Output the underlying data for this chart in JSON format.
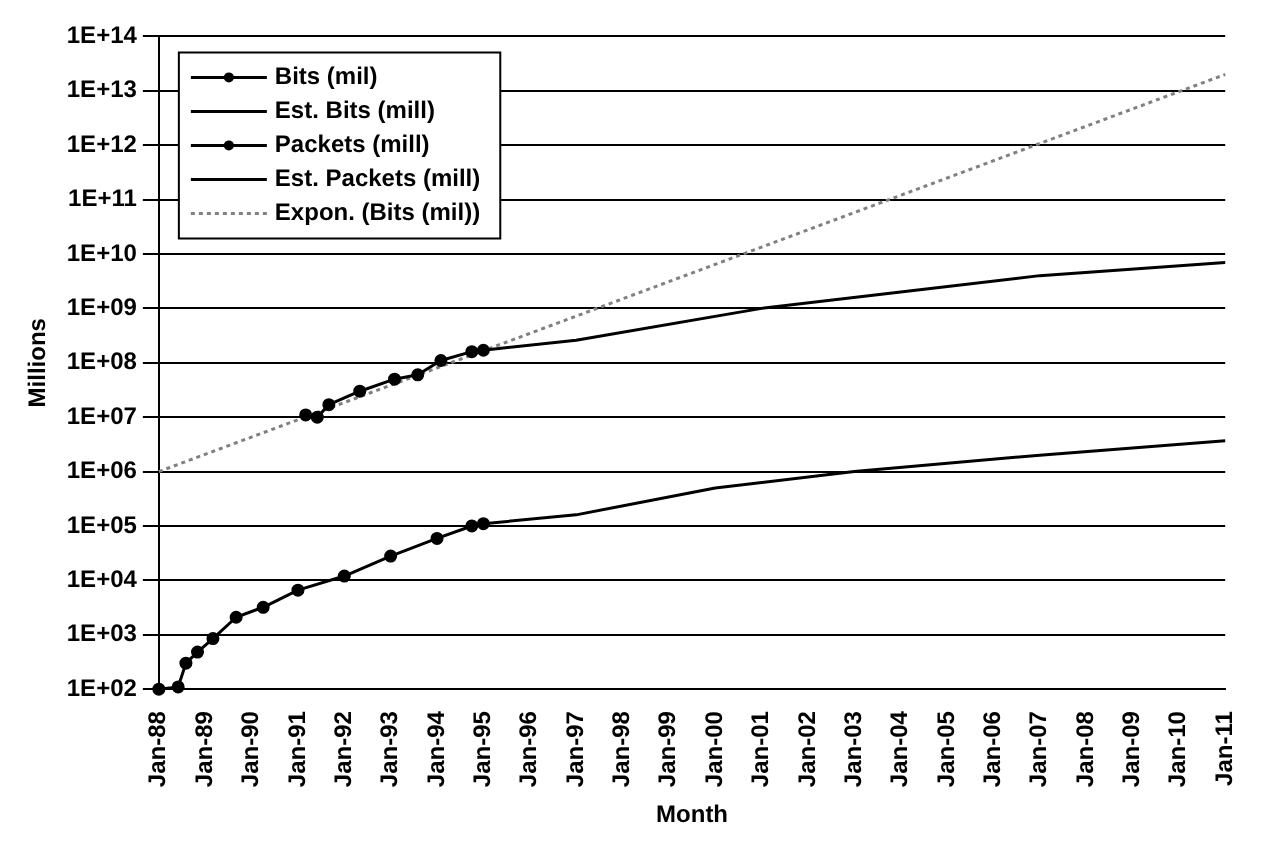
{
  "chart_data": {
    "type": "line",
    "xlabel": "Month",
    "ylabel": "Millions",
    "log": "y",
    "grid": "y",
    "legend": "top left",
    "xlim": [
      "1988-01",
      "2011-01"
    ],
    "xticks": [
      {
        "value": "1988-01",
        "label": "Jan-88"
      },
      {
        "value": "1989-01",
        "label": "Jan-89"
      },
      {
        "value": "1990-01",
        "label": "Jan-90"
      },
      {
        "value": "1991-01",
        "label": "Jan-91"
      },
      {
        "value": "1992-01",
        "label": "Jan-92"
      },
      {
        "value": "1993-01",
        "label": "Jan-93"
      },
      {
        "value": "1994-01",
        "label": "Jan-94"
      },
      {
        "value": "1995-01",
        "label": "Jan-95"
      },
      {
        "value": "1996-01",
        "label": "Jan-96"
      },
      {
        "value": "1997-01",
        "label": "Jan-97"
      },
      {
        "value": "1998-01",
        "label": "Jan-98"
      },
      {
        "value": "1999-01",
        "label": "Jan-99"
      },
      {
        "value": "2000-01",
        "label": "Jan-00"
      },
      {
        "value": "2001-01",
        "label": "Jan-01"
      },
      {
        "value": "2002-01",
        "label": "Jan-02"
      },
      {
        "value": "2003-01",
        "label": "Jan-03"
      },
      {
        "value": "2004-01",
        "label": "Jan-04"
      },
      {
        "value": "2005-01",
        "label": "Jan-05"
      },
      {
        "value": "2006-01",
        "label": "Jan-06"
      },
      {
        "value": "2007-01",
        "label": "Jan-07"
      },
      {
        "value": "2008-01",
        "label": "Jan-08"
      },
      {
        "value": "2009-01",
        "label": "Jan-09"
      },
      {
        "value": "2010-01",
        "label": "Jan-10"
      },
      {
        "value": "2011-01",
        "label": "Jan-11"
      }
    ],
    "ylim": [
      100,
      100000000000000
    ],
    "yticks": [
      {
        "value": 100,
        "label": "1E+02"
      },
      {
        "value": 1000,
        "label": "1E+03"
      },
      {
        "value": 10000,
        "label": "1E+04"
      },
      {
        "value": 100000,
        "label": "1E+05"
      },
      {
        "value": 1000000,
        "label": "1E+06"
      },
      {
        "value": 10000000,
        "label": "1E+07"
      },
      {
        "value": 100000000,
        "label": "1E+08"
      },
      {
        "value": 1000000000,
        "label": "1E+09"
      },
      {
        "value": 10000000000,
        "label": "1E+10"
      },
      {
        "value": 100000000000,
        "label": "1E+11"
      },
      {
        "value": 1000000000000,
        "label": "1E+12"
      },
      {
        "value": 10000000000000,
        "label": "1E+13"
      },
      {
        "value": 100000000000000,
        "label": "1E+14"
      }
    ],
    "series": [
      {
        "name": "Bits (mil)",
        "color": "#000000",
        "marker": "circle",
        "line_style": "solid",
        "x": [
          "1991-03",
          "1991-06",
          "1991-09",
          "1992-05",
          "1993-02",
          "1993-08",
          "1994-02",
          "1994-10",
          "1995-01"
        ],
        "values": [
          11000000,
          10000000,
          17000000,
          30000000,
          50000000,
          60000000,
          110000000,
          160000000,
          170000000
        ]
      },
      {
        "name": "Est. Bits (mill)",
        "color": "#000000",
        "marker": "none",
        "line_style": "solid",
        "x": [
          "1995-01",
          "1997-01",
          "2001-01",
          "2004-01",
          "2007-01",
          "2011-01"
        ],
        "values": [
          170000000,
          260000000,
          1000000000,
          2000000000,
          4000000000,
          7000000000
        ]
      },
      {
        "name": "Packets (mill)",
        "color": "#000000",
        "marker": "circle",
        "line_style": "solid",
        "x": [
          "1988-01",
          "1988-06",
          "1988-08",
          "1988-11",
          "1989-03",
          "1989-09",
          "1990-04",
          "1991-01",
          "1992-01",
          "1993-01",
          "1994-01",
          "1994-10",
          "1995-01"
        ],
        "values": [
          100,
          110,
          300,
          480,
          850,
          2100,
          3200,
          6600,
          12000,
          28000,
          59000,
          100000,
          110000
        ]
      },
      {
        "name": "Est. Packets (mill)",
        "color": "#000000",
        "marker": "none",
        "line_style": "solid",
        "x": [
          "1995-01",
          "1997-01",
          "2000-01",
          "2003-01",
          "2007-01",
          "2011-01"
        ],
        "values": [
          110000,
          160000,
          500000,
          1000000,
          2000000,
          3700000
        ]
      },
      {
        "name": "Expon. (Bits (mil))",
        "color": "#808080",
        "marker": "none",
        "line_style": "dotted",
        "x": [
          "1988-01",
          "2011-01"
        ],
        "values": [
          1000000,
          20000000000000
        ]
      }
    ]
  }
}
